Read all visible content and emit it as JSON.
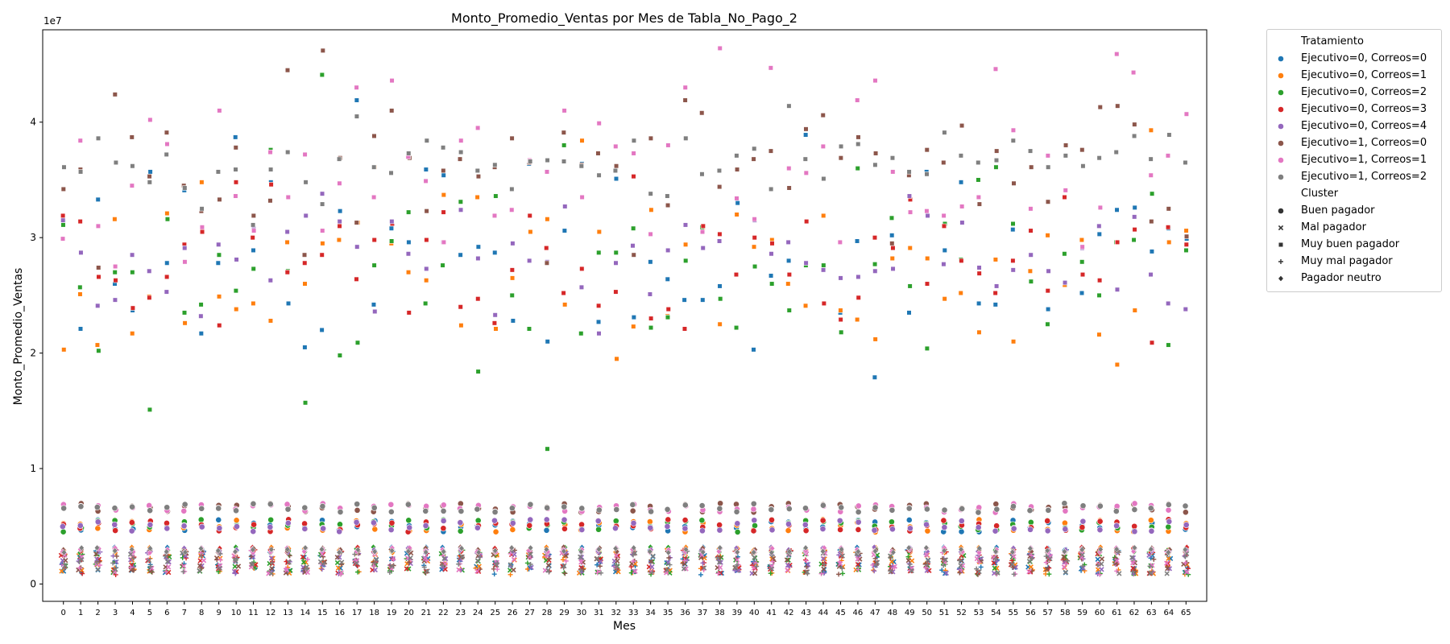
{
  "chart_data": {
    "type": "scatter",
    "title": "Monto_Promedio_Ventas por Mes de Tabla_No_Pago_2",
    "xlabel": "Mes",
    "ylabel": "Monto_Promedio_Ventas",
    "y_offset_label": "1e7",
    "x_ticks": [
      0,
      1,
      2,
      3,
      4,
      5,
      6,
      7,
      8,
      9,
      10,
      11,
      12,
      13,
      14,
      15,
      16,
      17,
      18,
      19,
      20,
      21,
      22,
      23,
      24,
      25,
      26,
      27,
      28,
      29,
      30,
      31,
      32,
      33,
      34,
      35,
      36,
      37,
      38,
      39,
      40,
      41,
      42,
      43,
      44,
      45,
      46,
      47,
      48,
      49,
      50,
      51,
      52,
      53,
      54,
      55,
      56,
      57,
      58,
      59,
      60,
      61,
      62,
      63,
      64,
      65
    ],
    "y_ticks": [
      0,
      1,
      2,
      3,
      4
    ],
    "xlim": [
      -1.2,
      66.2
    ],
    "ylim": [
      -0.15,
      4.8
    ],
    "grid": false,
    "legend_placement": "outside-top-right",
    "hue_title": "Tratamiento",
    "style_title": "Cluster",
    "series": [
      {
        "name": "Ejecutivo=0, Correos=0",
        "color": "#1f77b4",
        "muy_buen_pagador": [
          3.14,
          2.21,
          3.33,
          2.6,
          2.37,
          3.57,
          2.78,
          3.41,
          2.17,
          2.78,
          3.87,
          2.89,
          3.48,
          2.43,
          2.05,
          2.2,
          3.23,
          4.19,
          2.42,
          3.08,
          2.96,
          3.59,
          3.54,
          2.85,
          2.92,
          2.87,
          2.28,
          3.64,
          2.1,
          3.06,
          3.64,
          2.27,
          3.51,
          2.31,
          2.79,
          2.64,
          2.46,
          2.46,
          2.58,
          3.3,
          2.03,
          2.67,
          2.8,
          3.89,
          2.72,
          2.35,
          2.97,
          1.79,
          3.02,
          2.35,
          3.57,
          2.89,
          3.48,
          2.43,
          2.42,
          3.07,
          2.85,
          2.38,
          2.59,
          2.52,
          3.03,
          3.24,
          3.26,
          2.88,
          3.08,
          2.99
        ]
      },
      {
        "name": "Ejecutivo=0, Correos=1",
        "color": "#ff7f0e",
        "muy_buen_pagador": [
          2.03,
          2.51,
          2.07,
          3.16,
          2.17,
          2.49,
          3.21,
          2.26,
          3.48,
          2.49,
          2.38,
          2.43,
          2.28,
          2.96,
          2.6,
          2.95,
          2.98,
          3.13,
          3.61,
          2.95,
          2.7,
          2.63,
          3.37,
          2.24,
          3.35,
          2.21,
          2.65,
          3.05,
          3.16,
          2.42,
          3.84,
          3.05,
          1.95,
          2.23,
          3.24,
          2.32,
          2.94,
          3.08,
          2.25,
          3.2,
          2.92,
          2.98,
          2.6,
          2.41,
          3.19,
          2.37,
          2.29,
          2.12,
          2.82,
          2.91,
          2.82,
          2.47,
          2.52,
          2.18,
          2.81,
          2.1,
          2.71,
          3.02,
          2.59,
          2.98,
          2.16,
          1.9,
          2.37,
          3.93,
          2.96,
          3.06
        ]
      },
      {
        "name": "Ejecutivo=0, Correos=2",
        "color": "#2ca02c",
        "muy_buen_pagador": [
          3.11,
          2.57,
          2.02,
          2.7,
          2.7,
          1.51,
          3.16,
          2.35,
          2.42,
          2.85,
          2.54,
          2.73,
          3.76,
          2.71,
          1.57,
          4.41,
          1.98,
          2.09,
          2.76,
          2.97,
          3.22,
          2.43,
          2.76,
          3.31,
          1.84,
          3.36,
          2.5,
          2.21,
          1.17,
          3.8,
          2.17,
          2.87,
          2.87,
          3.08,
          2.22,
          2.31,
          2.8,
          3.09,
          2.47,
          2.22,
          2.75,
          2.6,
          2.37,
          2.76,
          2.76,
          2.18,
          3.6,
          2.77,
          3.17,
          2.58,
          2.04,
          3.12,
          2.81,
          3.5,
          3.61,
          3.12,
          2.62,
          2.25,
          2.86,
          2.79,
          2.5,
          2.96,
          2.98,
          3.38,
          2.07,
          2.89
        ]
      },
      {
        "name": "Ejecutivo=0, Correos=3",
        "color": "#d62728",
        "muy_buen_pagador": [
          3.19,
          3.14,
          2.66,
          2.63,
          2.39,
          2.48,
          2.66,
          2.94,
          3.05,
          2.24,
          3.48,
          3.0,
          3.46,
          2.7,
          2.78,
          2.85,
          3.1,
          2.64,
          2.98,
          3.12,
          2.35,
          2.98,
          3.22,
          2.4,
          2.47,
          2.26,
          2.72,
          3.19,
          2.91,
          2.52,
          2.73,
          2.41,
          2.53,
          3.53,
          2.3,
          2.38,
          2.21,
          3.1,
          3.03,
          2.68,
          3.0,
          2.95,
          2.68,
          3.14,
          2.43,
          2.29,
          2.48,
          3.0,
          2.91,
          3.33,
          2.6,
          3.1,
          2.8,
          2.69,
          2.52,
          2.8,
          3.06,
          2.54,
          3.35,
          2.68,
          2.63,
          2.96,
          3.07,
          2.09,
          3.09,
          2.94
        ]
      },
      {
        "name": "Ejecutivo=0, Correos=4",
        "color": "#9467bd",
        "muy_buen_pagador": [
          3.15,
          2.87,
          2.41,
          2.46,
          2.85,
          2.71,
          2.53,
          2.91,
          2.32,
          2.94,
          2.81,
          3.08,
          2.63,
          3.05,
          3.19,
          3.38,
          3.14,
          2.92,
          2.36,
          3.14,
          2.86,
          2.73,
          2.96,
          3.24,
          2.82,
          2.33,
          2.95,
          2.8,
          2.79,
          3.27,
          2.57,
          2.17,
          2.78,
          2.93,
          2.51,
          2.89,
          3.11,
          2.91,
          2.97,
          3.34,
          3.15,
          2.86,
          2.96,
          2.78,
          2.72,
          2.65,
          2.66,
          2.71,
          2.73,
          3.36,
          3.19,
          2.77,
          3.13,
          2.74,
          2.58,
          2.72,
          2.85,
          2.71,
          2.61,
          2.91,
          3.1,
          2.55,
          3.18,
          2.68,
          2.43,
          2.38
        ]
      },
      {
        "name": "Ejecutivo=1, Correos=0",
        "color": "#8c564b",
        "muy_buen_pagador": [
          3.42,
          3.59,
          2.74,
          4.24,
          3.87,
          3.53,
          3.91,
          3.45,
          3.23,
          3.33,
          3.78,
          3.19,
          3.32,
          4.45,
          2.85,
          4.62,
          3.69,
          3.13,
          3.88,
          4.1,
          3.69,
          3.23,
          3.58,
          3.68,
          3.53,
          3.61,
          3.86,
          3.65,
          2.78,
          3.91,
          3.63,
          3.73,
          3.62,
          2.85,
          3.86,
          3.28,
          4.19,
          4.08,
          3.44,
          3.59,
          3.68,
          3.75,
          3.43,
          3.94,
          4.06,
          3.69,
          3.87,
          3.73,
          2.95,
          3.54,
          3.76,
          3.65,
          3.97,
          3.29,
          3.75,
          3.47,
          3.61,
          3.31,
          3.8,
          3.76,
          4.13,
          4.14,
          3.98,
          3.14,
          3.25,
          3.01
        ]
      },
      {
        "name": "Ejecutivo=1, Correos=1",
        "color": "#e377c2",
        "muy_buen_pagador": [
          2.99,
          3.84,
          3.1,
          2.75,
          3.45,
          4.02,
          3.81,
          2.79,
          3.09,
          4.1,
          3.36,
          3.06,
          3.74,
          3.35,
          3.72,
          3.06,
          3.47,
          4.3,
          3.35,
          4.36,
          3.7,
          3.49,
          2.96,
          3.84,
          3.95,
          3.19,
          3.24,
          3.67,
          3.57,
          4.1,
          3.35,
          3.99,
          3.79,
          3.73,
          3.03,
          3.8,
          4.3,
          3.05,
          4.64,
          3.34,
          3.16,
          4.47,
          3.6,
          3.56,
          3.79,
          2.96,
          4.19,
          4.36,
          3.57,
          3.22,
          3.23,
          3.19,
          3.27,
          3.35,
          4.46,
          3.93,
          3.25,
          3.71,
          3.41,
          2.92,
          3.26,
          4.59,
          4.43,
          3.54,
          3.71,
          4.07
        ]
      },
      {
        "name": "Ejecutivo=1, Correos=2",
        "color": "#7f7f7f",
        "muy_buen_pagador": [
          3.61,
          3.57,
          3.86,
          3.65,
          3.62,
          3.48,
          3.72,
          3.43,
          3.25,
          3.57,
          3.59,
          3.11,
          3.59,
          3.74,
          3.48,
          3.29,
          3.68,
          4.05,
          3.61,
          3.56,
          3.73,
          3.84,
          3.78,
          3.74,
          3.58,
          3.63,
          3.42,
          3.66,
          3.67,
          3.66,
          3.62,
          3.54,
          3.58,
          3.84,
          3.38,
          3.36,
          3.86,
          3.55,
          3.58,
          3.71,
          3.77,
          3.42,
          4.14,
          3.68,
          3.51,
          3.79,
          3.81,
          3.63,
          3.69,
          3.57,
          3.55,
          3.91,
          3.71,
          3.65,
          3.67,
          3.84,
          3.75,
          3.61,
          3.71,
          3.62,
          3.69,
          3.74,
          3.88,
          3.68,
          3.89,
          3.65
        ]
      }
    ],
    "other_clusters": {
      "buen_pagador_range": [
        0.45,
        0.7
      ],
      "pagador_neutro_range": [
        0.27,
        0.32
      ],
      "mal_pagador_range": [
        0.09,
        0.27
      ],
      "muy_mal_pagador_range": [
        0.08,
        0.3
      ]
    }
  },
  "legend": {
    "hue_title": "Tratamiento",
    "hue_items": [
      {
        "label": "Ejecutivo=0, Correos=0",
        "color": "#1f77b4"
      },
      {
        "label": "Ejecutivo=0, Correos=1",
        "color": "#ff7f0e"
      },
      {
        "label": "Ejecutivo=0, Correos=2",
        "color": "#2ca02c"
      },
      {
        "label": "Ejecutivo=0, Correos=3",
        "color": "#d62728"
      },
      {
        "label": "Ejecutivo=0, Correos=4",
        "color": "#9467bd"
      },
      {
        "label": "Ejecutivo=1, Correos=0",
        "color": "#8c564b"
      },
      {
        "label": "Ejecutivo=1, Correos=1",
        "color": "#e377c2"
      },
      {
        "label": "Ejecutivo=1, Correos=2",
        "color": "#7f7f7f"
      }
    ],
    "style_title": "Cluster",
    "style_items": [
      {
        "label": "Buen pagador",
        "marker": "circle"
      },
      {
        "label": "Mal pagador",
        "marker": "x"
      },
      {
        "label": "Muy buen pagador",
        "marker": "square"
      },
      {
        "label": "Muy mal pagador",
        "marker": "plus"
      },
      {
        "label": "Pagador neutro",
        "marker": "diamond"
      }
    ]
  }
}
